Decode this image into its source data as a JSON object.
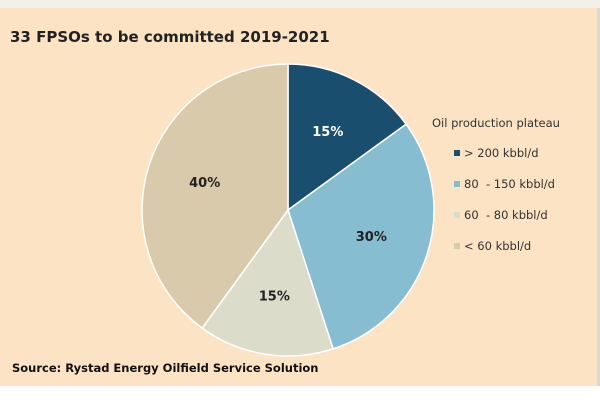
{
  "chart_data": {
    "type": "pie",
    "title": "33 FPSOs to be committed 2019-2021",
    "source": "Source: Rystad Energy Oilfield Service Solution",
    "legend_title": "Oil production plateau",
    "legend_position": "right",
    "slices": [
      {
        "label": "> 200 kbbl/d",
        "value": 15,
        "display": "15%",
        "color": "#1a4e6e",
        "label_color": "#ffffff"
      },
      {
        "label": "80  - 150 kbbl/d",
        "value": 30,
        "display": "30%",
        "color": "#86bdd0",
        "label_color": "#222222"
      },
      {
        "label": "60  - 80 kbbl/d",
        "value": 15,
        "display": "15%",
        "color": "#dcdccb",
        "label_color": "#222222"
      },
      {
        "label": "< 60 kbbl/d",
        "value": 40,
        "display": "40%",
        "color": "#dacaac",
        "label_color": "#222222"
      }
    ]
  }
}
